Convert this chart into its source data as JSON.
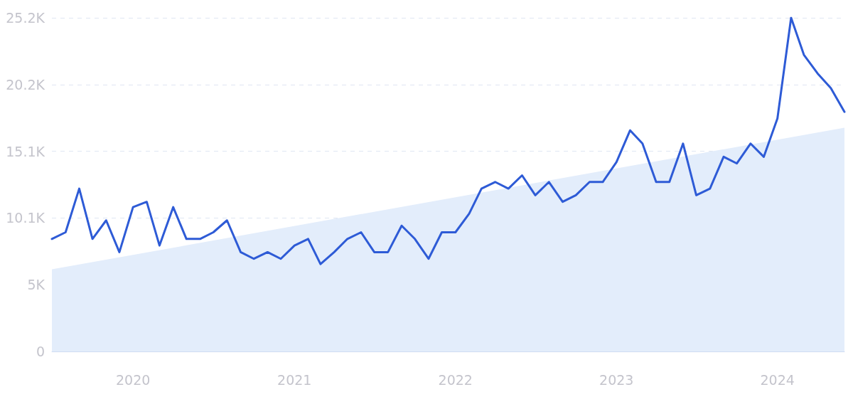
{
  "chart_data": {
    "type": "line",
    "x": [
      "2019-07",
      "2019-08",
      "2019-09",
      "2019-10",
      "2019-11",
      "2019-12",
      "2020-01",
      "2020-02",
      "2020-03",
      "2020-04",
      "2020-05",
      "2020-06",
      "2020-07",
      "2020-08",
      "2020-09",
      "2020-10",
      "2020-11",
      "2020-12",
      "2021-01",
      "2021-02",
      "2021-03",
      "2021-04",
      "2021-05",
      "2021-06",
      "2021-07",
      "2021-08",
      "2021-09",
      "2021-10",
      "2021-11",
      "2021-12",
      "2022-01",
      "2022-02",
      "2022-03",
      "2022-04",
      "2022-05",
      "2022-06",
      "2022-07",
      "2022-08",
      "2022-09",
      "2022-10",
      "2022-11",
      "2022-12",
      "2023-01",
      "2023-02",
      "2023-03",
      "2023-04",
      "2023-05",
      "2023-06",
      "2023-07",
      "2023-08",
      "2023-09",
      "2023-10",
      "2023-11",
      "2023-12",
      "2024-01",
      "2024-02",
      "2024-03",
      "2024-04",
      "2024-05",
      "2024-06"
    ],
    "series": [
      {
        "type": "area",
        "color": "#e3edfb",
        "x": [
          "2019-07",
          "2024-06"
        ],
        "values": [
          6200,
          16900
        ]
      },
      {
        "color": "#2e5bd6",
        "values": [
          8500,
          9000,
          12300,
          8500,
          9900,
          7500,
          10900,
          11300,
          8000,
          10900,
          8500,
          8500,
          9000,
          9900,
          7500,
          7000,
          7500,
          7000,
          8000,
          8500,
          6600,
          7500,
          8500,
          9000,
          7500,
          7500,
          9500,
          8500,
          7000,
          9000,
          9000,
          10400,
          12300,
          12800,
          12300,
          13300,
          11800,
          12800,
          11300,
          11800,
          12800,
          12800,
          14300,
          16700,
          15700,
          12800,
          12800,
          15700,
          11800,
          12300,
          14700,
          14200,
          15700,
          14700,
          17600,
          25200,
          22400,
          21000,
          19900,
          18100
        ]
      }
    ],
    "xlim": [
      "2019-07",
      "2024-06"
    ],
    "xticks": [
      "2020",
      "2021",
      "2022",
      "2023",
      "2024"
    ],
    "ylim": [
      0,
      25200
    ],
    "yticks": [
      0,
      {
        "value": 5040,
        "label": "5K"
      },
      {
        "value": 10080,
        "label": "10.1K"
      },
      {
        "value": 15120,
        "label": "15.1K"
      },
      {
        "value": 20160,
        "label": "20.2K"
      },
      {
        "value": 25200,
        "label": "25.2K"
      }
    ],
    "grid": "y",
    "marker": "none",
    "line_style": "solid"
  }
}
